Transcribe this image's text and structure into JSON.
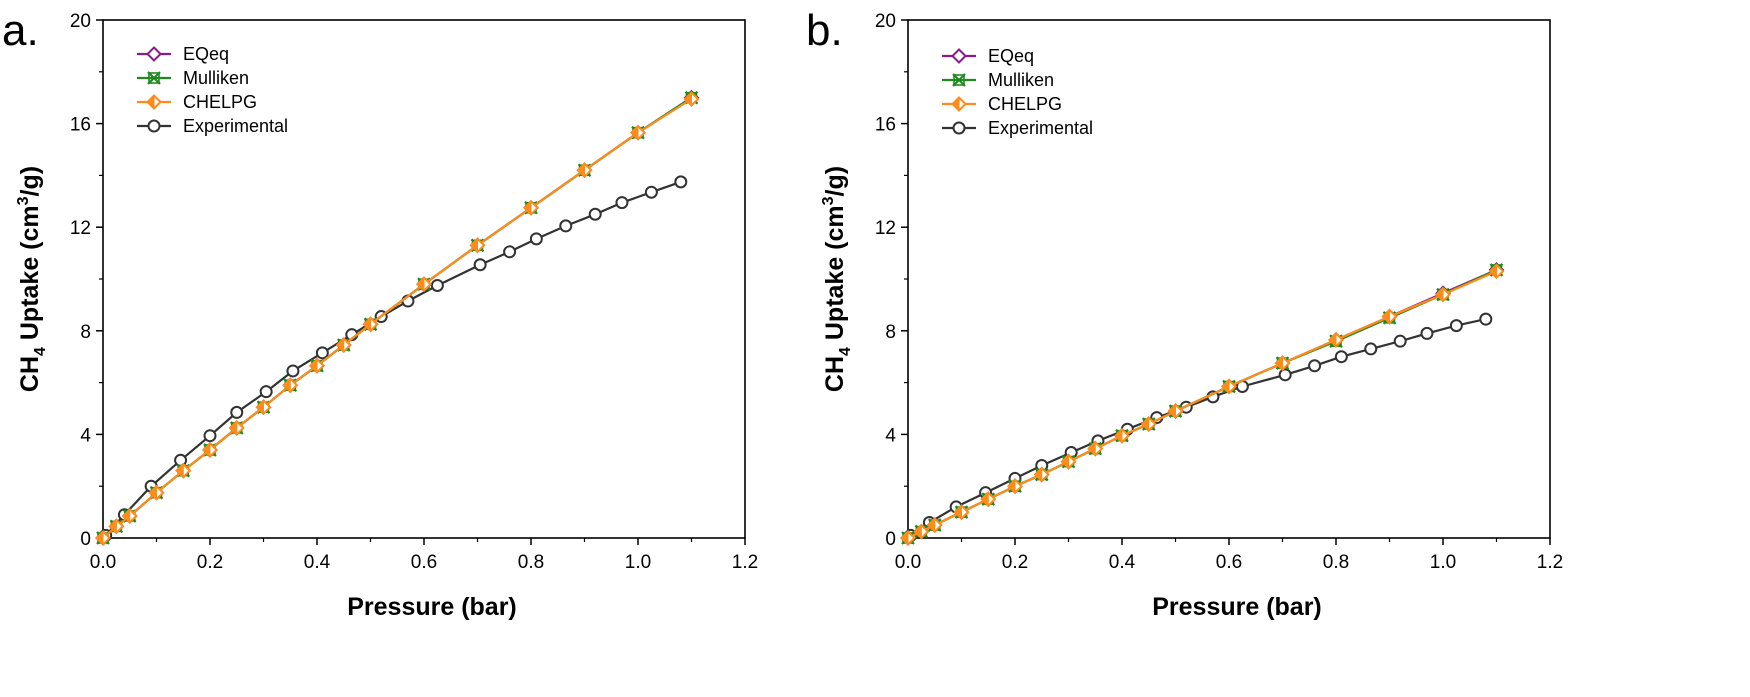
{
  "colors": {
    "EQeq": "#8b1a8b",
    "Mulliken": "#1f8a1f",
    "CHELPG": "#ff8c1a",
    "Experimental": "#333333"
  },
  "chart_data": [
    {
      "panel": "a.",
      "type": "line",
      "xlabel": "Pressure (bar)",
      "ylabel_parts": [
        "CH",
        "4",
        " Uptake (cm",
        "3",
        "/g)"
      ],
      "xlim": [
        0,
        1.2
      ],
      "ylim": [
        0,
        20
      ],
      "xticks": [
        "0.0",
        "0.2",
        "0.4",
        "0.6",
        "0.8",
        "1.0",
        "1.2"
      ],
      "yticks": [
        "0",
        "4",
        "8",
        "12",
        "16",
        "20"
      ],
      "legend_position": "top-left",
      "series": [
        {
          "name": "EQeq",
          "marker": "diamond",
          "x": [
            0,
            0.025,
            0.05,
            0.1,
            0.15,
            0.2,
            0.25,
            0.3,
            0.35,
            0.4,
            0.45,
            0.5,
            0.6,
            0.7,
            0.8,
            0.9,
            1.0,
            1.1
          ],
          "y": [
            0.0,
            0.45,
            0.85,
            1.75,
            2.6,
            3.4,
            4.25,
            5.05,
            5.9,
            6.65,
            7.45,
            8.25,
            9.8,
            11.3,
            12.75,
            14.2,
            15.65,
            17.0
          ]
        },
        {
          "name": "Mulliken",
          "marker": "x-square",
          "x": [
            0,
            0.025,
            0.05,
            0.1,
            0.15,
            0.2,
            0.25,
            0.3,
            0.35,
            0.4,
            0.45,
            0.5,
            0.6,
            0.7,
            0.8,
            0.9,
            1.0,
            1.1
          ],
          "y": [
            0.0,
            0.45,
            0.85,
            1.75,
            2.6,
            3.4,
            4.25,
            5.05,
            5.9,
            6.65,
            7.45,
            8.25,
            9.8,
            11.3,
            12.75,
            14.2,
            15.65,
            17.0
          ]
        },
        {
          "name": "CHELPG",
          "marker": "half-diamond",
          "x": [
            0,
            0.025,
            0.05,
            0.1,
            0.15,
            0.2,
            0.25,
            0.3,
            0.35,
            0.4,
            0.45,
            0.5,
            0.6,
            0.7,
            0.8,
            0.9,
            1.0,
            1.1
          ],
          "y": [
            0.0,
            0.45,
            0.85,
            1.75,
            2.6,
            3.4,
            4.25,
            5.05,
            5.9,
            6.65,
            7.45,
            8.25,
            9.8,
            11.3,
            12.75,
            14.2,
            15.65,
            16.95
          ]
        },
        {
          "name": "Experimental",
          "marker": "circle",
          "x": [
            0.005,
            0.04,
            0.09,
            0.145,
            0.2,
            0.25,
            0.305,
            0.355,
            0.41,
            0.465,
            0.52,
            0.57,
            0.625,
            0.705,
            0.76,
            0.81,
            0.865,
            0.92,
            0.97,
            1.025,
            1.08
          ],
          "y": [
            0.1,
            0.9,
            2.0,
            3.0,
            3.95,
            4.85,
            5.65,
            6.45,
            7.15,
            7.85,
            8.55,
            9.15,
            9.75,
            10.55,
            11.05,
            11.55,
            12.05,
            12.5,
            12.95,
            13.35,
            13.75
          ]
        }
      ]
    },
    {
      "panel": "b.",
      "type": "line",
      "xlabel": "Pressure (bar)",
      "ylabel_parts": [
        "CH",
        "4",
        " Uptake (cm",
        "3",
        "/g)"
      ],
      "xlim": [
        0,
        1.2
      ],
      "ylim": [
        0,
        20
      ],
      "xticks": [
        "0.0",
        "0.2",
        "0.4",
        "0.6",
        "0.8",
        "1.0",
        "1.2"
      ],
      "yticks": [
        "0",
        "4",
        "8",
        "12",
        "16",
        "20"
      ],
      "legend_position": "top-left",
      "series": [
        {
          "name": "EQeq",
          "marker": "diamond",
          "x": [
            0,
            0.025,
            0.05,
            0.1,
            0.15,
            0.2,
            0.25,
            0.3,
            0.35,
            0.4,
            0.45,
            0.5,
            0.6,
            0.7,
            0.8,
            0.9,
            1.0,
            1.1
          ],
          "y": [
            0.0,
            0.25,
            0.5,
            1.0,
            1.5,
            2.0,
            2.45,
            2.95,
            3.45,
            3.95,
            4.4,
            4.9,
            5.85,
            6.75,
            7.65,
            8.55,
            9.45,
            10.35
          ]
        },
        {
          "name": "Mulliken",
          "marker": "x-square",
          "x": [
            0,
            0.025,
            0.05,
            0.1,
            0.15,
            0.2,
            0.25,
            0.3,
            0.35,
            0.4,
            0.45,
            0.5,
            0.6,
            0.7,
            0.8,
            0.9,
            1.0,
            1.1
          ],
          "y": [
            0.0,
            0.25,
            0.5,
            1.0,
            1.5,
            2.0,
            2.45,
            2.95,
            3.45,
            3.95,
            4.4,
            4.9,
            5.85,
            6.75,
            7.6,
            8.5,
            9.4,
            10.35
          ]
        },
        {
          "name": "CHELPG",
          "marker": "half-diamond",
          "x": [
            0,
            0.025,
            0.05,
            0.1,
            0.15,
            0.2,
            0.25,
            0.3,
            0.35,
            0.4,
            0.45,
            0.5,
            0.6,
            0.7,
            0.8,
            0.9,
            1.0,
            1.1
          ],
          "y": [
            0.0,
            0.25,
            0.5,
            1.0,
            1.5,
            2.0,
            2.45,
            2.95,
            3.45,
            3.95,
            4.4,
            4.9,
            5.85,
            6.75,
            7.65,
            8.55,
            9.4,
            10.3
          ]
        },
        {
          "name": "Experimental",
          "marker": "circle",
          "x": [
            0.005,
            0.04,
            0.09,
            0.145,
            0.2,
            0.25,
            0.305,
            0.355,
            0.41,
            0.465,
            0.52,
            0.57,
            0.625,
            0.705,
            0.76,
            0.81,
            0.865,
            0.92,
            0.97,
            1.025,
            1.08
          ],
          "y": [
            0.1,
            0.6,
            1.2,
            1.75,
            2.3,
            2.8,
            3.3,
            3.75,
            4.2,
            4.65,
            5.05,
            5.45,
            5.85,
            6.3,
            6.65,
            7.0,
            7.3,
            7.6,
            7.9,
            8.2,
            8.45
          ]
        }
      ]
    }
  ]
}
